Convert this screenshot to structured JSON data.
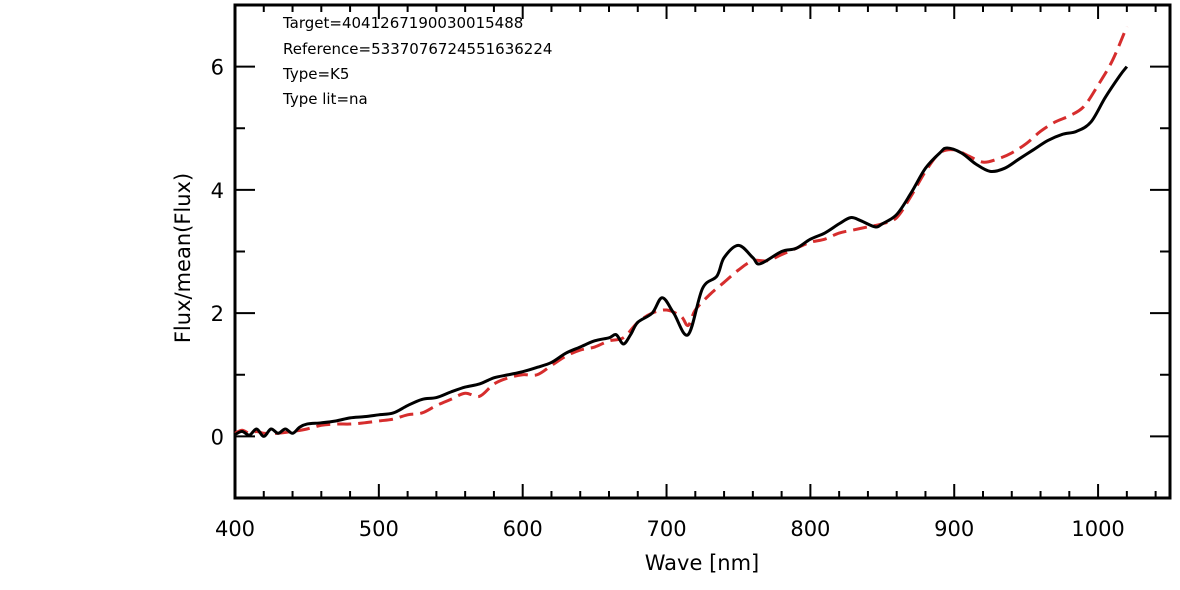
{
  "chart_data": {
    "type": "line",
    "xlabel": "Wave [nm]",
    "ylabel": "Flux/mean(Flux)",
    "xlim": [
      400,
      1050
    ],
    "ylim": [
      -1,
      7
    ],
    "xticks": [
      400,
      500,
      600,
      700,
      800,
      900,
      1000
    ],
    "yticks": [
      0,
      2,
      4,
      6
    ],
    "grid": false,
    "annotations": [
      "Target=4041267190030015488",
      "Reference=5337076724551636224",
      "Type=K5",
      "Type lit=na"
    ],
    "series": [
      {
        "style": "solid",
        "color": "#000000",
        "x": [
          400,
          405,
          410,
          415,
          420,
          425,
          430,
          435,
          440,
          445,
          450,
          460,
          470,
          480,
          490,
          500,
          510,
          520,
          530,
          540,
          550,
          560,
          570,
          580,
          590,
          600,
          610,
          620,
          630,
          640,
          650,
          660,
          665,
          670,
          675,
          680,
          690,
          697,
          705,
          715,
          725,
          735,
          740,
          750,
          760,
          765,
          780,
          790,
          800,
          810,
          820,
          828,
          835,
          845,
          850,
          860,
          870,
          880,
          890,
          895,
          905,
          915,
          925,
          935,
          945,
          955,
          965,
          975,
          985,
          995,
          1005,
          1015,
          1020
        ],
        "y": [
          0.03,
          0.08,
          0.02,
          0.12,
          0.0,
          0.12,
          0.05,
          0.12,
          0.05,
          0.15,
          0.2,
          0.22,
          0.25,
          0.3,
          0.32,
          0.35,
          0.38,
          0.5,
          0.6,
          0.63,
          0.72,
          0.8,
          0.85,
          0.95,
          1.0,
          1.05,
          1.12,
          1.2,
          1.35,
          1.45,
          1.55,
          1.6,
          1.65,
          1.5,
          1.65,
          1.85,
          2.0,
          2.25,
          2.0,
          1.65,
          2.4,
          2.6,
          2.9,
          3.1,
          2.9,
          2.8,
          3.0,
          3.05,
          3.2,
          3.3,
          3.45,
          3.55,
          3.5,
          3.4,
          3.45,
          3.6,
          3.95,
          4.35,
          4.6,
          4.68,
          4.6,
          4.42,
          4.3,
          4.35,
          4.5,
          4.65,
          4.8,
          4.9,
          4.95,
          5.1,
          5.5,
          5.85,
          6.0
        ]
      },
      {
        "style": "dashed",
        "color": "#d62d2d",
        "x": [
          400,
          405,
          410,
          415,
          420,
          425,
          430,
          440,
          450,
          460,
          470,
          480,
          490,
          500,
          510,
          520,
          530,
          540,
          550,
          560,
          570,
          580,
          590,
          600,
          610,
          620,
          630,
          640,
          650,
          660,
          670,
          680,
          690,
          700,
          710,
          715,
          720,
          730,
          740,
          750,
          760,
          770,
          780,
          790,
          800,
          810,
          820,
          830,
          840,
          850,
          860,
          870,
          880,
          890,
          900,
          910,
          920,
          930,
          940,
          950,
          960,
          970,
          980,
          990,
          1000,
          1010,
          1020
        ],
        "y": [
          0.05,
          0.1,
          0.05,
          0.08,
          0.05,
          0.05,
          0.05,
          0.08,
          0.12,
          0.18,
          0.2,
          0.2,
          0.22,
          0.25,
          0.28,
          0.35,
          0.38,
          0.5,
          0.6,
          0.7,
          0.65,
          0.85,
          0.95,
          1.0,
          1.0,
          1.15,
          1.3,
          1.4,
          1.45,
          1.55,
          1.6,
          1.85,
          2.0,
          2.05,
          1.95,
          1.8,
          2.05,
          2.3,
          2.5,
          2.7,
          2.85,
          2.85,
          2.95,
          3.05,
          3.15,
          3.2,
          3.3,
          3.35,
          3.4,
          3.45,
          3.55,
          3.9,
          4.3,
          4.6,
          4.65,
          4.55,
          4.45,
          4.5,
          4.6,
          4.75,
          4.95,
          5.1,
          5.2,
          5.35,
          5.7,
          6.1,
          6.65
        ]
      }
    ]
  }
}
